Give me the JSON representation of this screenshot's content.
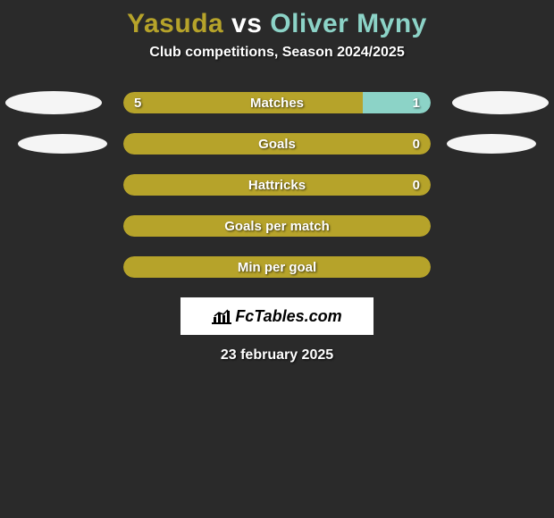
{
  "title": {
    "player1": "Yasuda",
    "vs": "vs",
    "player2": "Oliver Myny",
    "color_player1": "#b6a32a",
    "color_vs": "#ffffff",
    "color_player2": "#8cd3c7"
  },
  "subtitle": "Club competitions, Season 2024/2025",
  "colors": {
    "left": "#b6a32a",
    "right": "#8cd3c7",
    "neutral": "#b6a32a",
    "background": "#2a2a2a",
    "ellipse": "#f5f5f5",
    "text": "#ffffff"
  },
  "stats": [
    {
      "label": "Matches",
      "left_val": "5",
      "right_val": "1",
      "left_pct": 78,
      "right_pct": 22,
      "show_ellipse": "wide"
    },
    {
      "label": "Goals",
      "left_val": "",
      "right_val": "0",
      "left_pct": 100,
      "right_pct": 0,
      "show_ellipse": "narrow"
    },
    {
      "label": "Hattricks",
      "left_val": "",
      "right_val": "0",
      "left_pct": 100,
      "right_pct": 0,
      "show_ellipse": "none"
    },
    {
      "label": "Goals per match",
      "left_val": "",
      "right_val": "",
      "left_pct": 100,
      "right_pct": 0,
      "show_ellipse": "none"
    },
    {
      "label": "Min per goal",
      "left_val": "",
      "right_val": "",
      "left_pct": 100,
      "right_pct": 0,
      "show_ellipse": "none"
    }
  ],
  "brand": "FcTables.com",
  "date": "23 february 2025"
}
